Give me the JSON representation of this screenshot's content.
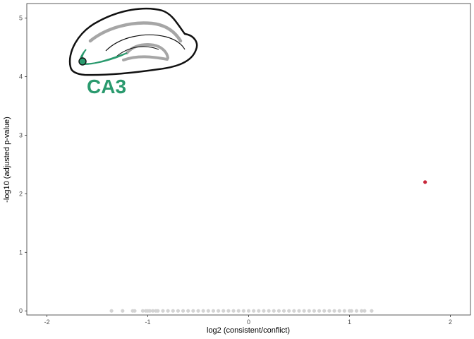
{
  "chart_data": {
    "type": "scatter",
    "title": "",
    "xlabel": "log2 (consistent/conflict)",
    "ylabel": "-log10 (adjusted p-value)",
    "xlim": [
      -2.2,
      2.2
    ],
    "ylim": [
      -0.07,
      5.25
    ],
    "xticks": [
      -2,
      -1,
      0,
      1,
      2
    ],
    "xtick_labels": [
      "-2",
      "-1",
      "0",
      "1",
      "2"
    ],
    "yticks": [
      0,
      1,
      2,
      3,
      4,
      5
    ],
    "ytick_labels": [
      "0",
      "1",
      "2",
      "3",
      "4",
      "5"
    ],
    "grid": false,
    "legend": "none",
    "colors": {
      "nonsignificant": "#d3d3d3",
      "significant": "#c8273a",
      "region_highlight": "#2a9a6e",
      "region_fill_gray": "#a6a6a6"
    },
    "series": [
      {
        "color": "nonsignificant",
        "x": [
          -1.36,
          -1.25,
          -1.15,
          -1.13,
          -1.05,
          -1.02,
          -1.0,
          -0.98,
          -0.95,
          -0.92,
          -0.9,
          -0.85,
          -0.8,
          -0.75,
          -0.7,
          -0.65,
          -0.6,
          -0.55,
          -0.5,
          -0.45,
          -0.4,
          -0.35,
          -0.3,
          -0.25,
          -0.2,
          -0.15,
          -0.1,
          -0.05,
          0.0,
          0.05,
          0.1,
          0.15,
          0.2,
          0.25,
          0.3,
          0.35,
          0.4,
          0.45,
          0.5,
          0.55,
          0.6,
          0.65,
          0.7,
          0.75,
          0.8,
          0.85,
          0.9,
          0.95,
          1.0,
          1.02,
          1.07,
          1.12,
          1.15,
          1.22
        ],
        "y": [
          0,
          0,
          0,
          0,
          0,
          0,
          0,
          0,
          0,
          0,
          0,
          0,
          0,
          0,
          0,
          0,
          0,
          0,
          0,
          0,
          0,
          0,
          0,
          0,
          0,
          0,
          0,
          0,
          0,
          0,
          0,
          0,
          0,
          0,
          0,
          0,
          0,
          0,
          0,
          0,
          0,
          0,
          0,
          0,
          0,
          0,
          0,
          0,
          0,
          0,
          0,
          0,
          0,
          0
        ]
      },
      {
        "color": "significant",
        "x": [
          1.75
        ],
        "y": [
          2.2
        ]
      }
    ],
    "inset": {
      "label": "CA3",
      "icon": "hippocampus-icon"
    }
  }
}
